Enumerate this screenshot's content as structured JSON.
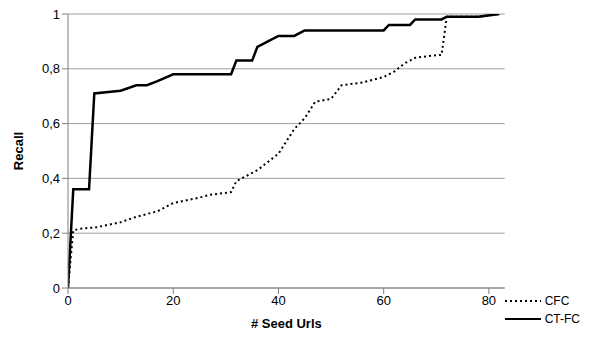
{
  "chart_data": {
    "type": "line",
    "x_label": "# Seed Urls",
    "y_label": "Recall",
    "x": [
      0,
      1,
      2,
      4,
      5,
      10,
      13,
      15,
      17,
      20,
      25,
      27,
      31,
      32,
      35,
      36,
      38,
      40,
      43,
      44,
      45,
      47,
      50,
      52,
      56,
      60,
      61,
      62,
      64,
      65,
      66,
      70,
      71,
      72,
      76,
      78,
      82
    ],
    "series": [
      {
        "name": "CFC",
        "color": "#000000",
        "line_style": "dotted",
        "values": [
          0,
          0.21,
          0.215,
          0.22,
          0.22,
          0.24,
          0.26,
          0.27,
          0.28,
          0.31,
          0.33,
          0.34,
          0.35,
          0.39,
          0.42,
          0.43,
          0.46,
          0.49,
          0.58,
          0.6,
          0.62,
          0.68,
          0.69,
          0.74,
          0.75,
          0.77,
          0.78,
          0.79,
          0.82,
          0.83,
          0.84,
          0.85,
          0.85,
          0.99,
          0.99,
          0.99,
          1
        ]
      },
      {
        "name": "CT-FC",
        "color": "#000000",
        "line_style": "solid",
        "values": [
          0,
          0.36,
          0.36,
          0.36,
          0.71,
          0.72,
          0.74,
          0.74,
          0.755,
          0.78,
          0.78,
          0.78,
          0.78,
          0.83,
          0.83,
          0.88,
          0.9,
          0.92,
          0.92,
          0.93,
          0.94,
          0.94,
          0.94,
          0.94,
          0.94,
          0.94,
          0.96,
          0.96,
          0.96,
          0.96,
          0.98,
          0.98,
          0.98,
          0.99,
          0.99,
          0.99,
          1
        ]
      }
    ],
    "xlim": [
      0,
      83
    ],
    "xticks": [
      0,
      20,
      40,
      60,
      80
    ],
    "ylim": [
      0,
      1
    ],
    "yticks": [
      0,
      {
        "value": 0.2,
        "label": "0,2"
      },
      {
        "value": 0.4,
        "label": "0,4"
      },
      {
        "value": 0.6,
        "label": "0,6"
      },
      {
        "value": 0.8,
        "label": "0,8"
      },
      1
    ],
    "grid": true,
    "legend": "bottom-right"
  }
}
